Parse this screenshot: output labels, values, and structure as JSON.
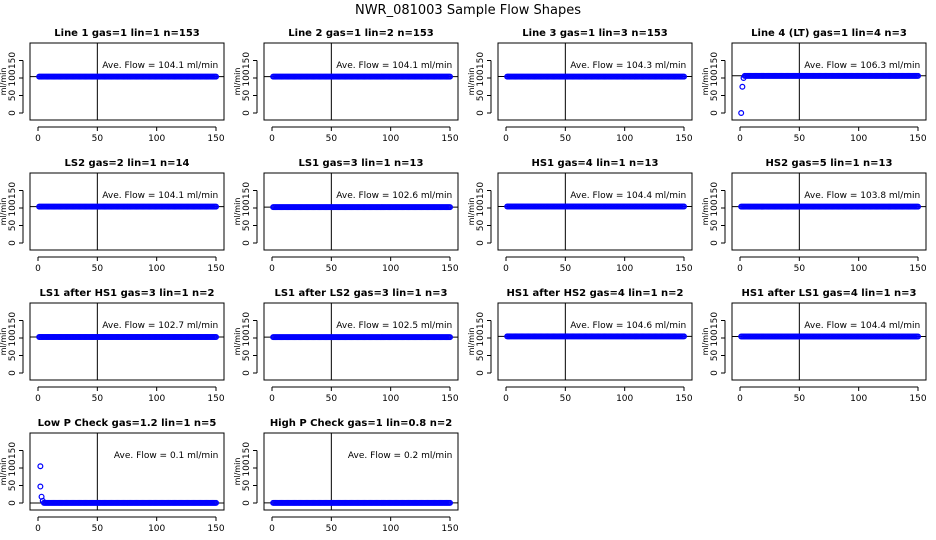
{
  "chart_data": {
    "title": "NWR_081003  Sample Flow Shapes",
    "ylabel": "ml/min",
    "xlim": [
      0,
      150
    ],
    "ylim": [
      -20,
      200
    ],
    "xticks": [
      0,
      50,
      100,
      150
    ],
    "yticks": [
      0,
      50,
      100,
      150
    ],
    "panels": [
      {
        "type": "scatter",
        "title": "Line 1 gas=1 lin=1 n=153",
        "annotation": "Ave. Flow =  104.1  ml/min",
        "hline": 104.1,
        "vline": 50,
        "points": [],
        "steady": {
          "x_start": 1,
          "x_end": 150,
          "value": 104
        }
      },
      {
        "type": "scatter",
        "title": "Line 2 gas=1 lin=2 n=153",
        "annotation": "Ave. Flow =  104.1  ml/min",
        "hline": 104.1,
        "vline": 50,
        "points": [],
        "steady": {
          "x_start": 1,
          "x_end": 150,
          "value": 104
        }
      },
      {
        "type": "scatter",
        "title": "Line 3 gas=1 lin=3 n=153",
        "annotation": "Ave. Flow =  104.3  ml/min",
        "hline": 104.3,
        "vline": 50,
        "points": [],
        "steady": {
          "x_start": 1,
          "x_end": 150,
          "value": 104
        }
      },
      {
        "type": "scatter",
        "title": "Line 4 (LT) gas=1 lin=4 n=3",
        "annotation": "Ave. Flow =  106.3  ml/min",
        "hline": 106.3,
        "vline": 50,
        "points": [
          [
            1,
            0
          ],
          [
            2,
            75
          ],
          [
            3,
            100
          ]
        ],
        "steady": {
          "x_start": 4,
          "x_end": 150,
          "value": 106
        }
      },
      {
        "type": "scatter",
        "title": "LS2 gas=2 lin=1 n=14",
        "annotation": "Ave. Flow =  104.1  ml/min",
        "hline": 104.1,
        "vline": 50,
        "points": [],
        "steady": {
          "x_start": 1,
          "x_end": 150,
          "value": 104
        }
      },
      {
        "type": "scatter",
        "title": "LS1 gas=3 lin=1 n=13",
        "annotation": "Ave. Flow =  102.6  ml/min",
        "hline": 102.6,
        "vline": 50,
        "points": [],
        "steady": {
          "x_start": 1,
          "x_end": 150,
          "value": 102.6
        }
      },
      {
        "type": "scatter",
        "title": "HS1 gas=4 lin=1 n=13",
        "annotation": "Ave. Flow =  104.4  ml/min",
        "hline": 104.4,
        "vline": 50,
        "points": [],
        "steady": {
          "x_start": 1,
          "x_end": 150,
          "value": 104.4
        }
      },
      {
        "type": "scatter",
        "title": "HS2 gas=5 lin=1 n=13",
        "annotation": "Ave. Flow =  103.8  ml/min",
        "hline": 103.8,
        "vline": 50,
        "points": [],
        "steady": {
          "x_start": 1,
          "x_end": 150,
          "value": 103.8
        }
      },
      {
        "type": "scatter",
        "title": "LS1 after HS1 gas=3 lin=1 n=2",
        "annotation": "Ave. Flow =  102.7  ml/min",
        "hline": 102.7,
        "vline": 50,
        "points": [],
        "steady": {
          "x_start": 1,
          "x_end": 150,
          "value": 102.7
        }
      },
      {
        "type": "scatter",
        "title": "LS1 after LS2 gas=3 lin=1 n=3",
        "annotation": "Ave. Flow =  102.5  ml/min",
        "hline": 102.5,
        "vline": 50,
        "points": [],
        "steady": {
          "x_start": 1,
          "x_end": 150,
          "value": 102.5
        }
      },
      {
        "type": "scatter",
        "title": "HS1 after HS2 gas=4 lin=1 n=2",
        "annotation": "Ave. Flow =  104.6  ml/min",
        "hline": 104.6,
        "vline": 50,
        "points": [],
        "steady": {
          "x_start": 1,
          "x_end": 150,
          "value": 104.6
        }
      },
      {
        "type": "scatter",
        "title": "HS1 after LS1 gas=4 lin=1 n=3",
        "annotation": "Ave. Flow =  104.4  ml/min",
        "hline": 104.4,
        "vline": 50,
        "points": [],
        "steady": {
          "x_start": 1,
          "x_end": 150,
          "value": 104.4
        }
      },
      {
        "type": "scatter",
        "title": "Low P Check gas=1.2 lin=1 n=5",
        "annotation": "Ave. Flow =  0.1  ml/min",
        "hline": 0.1,
        "vline": 50,
        "points": [
          [
            2,
            47
          ],
          [
            3,
            18
          ],
          [
            4,
            6
          ]
        ],
        "steady": {
          "x_start": 5,
          "x_end": 150,
          "value": 0.3
        }
      },
      {
        "type": "scatter",
        "title": "High P Check gas=1 lin=0.8 n=2",
        "annotation": "Ave. Flow =  0.2  ml/min",
        "hline": 0.2,
        "vline": 50,
        "points": [],
        "steady": {
          "x_start": 1,
          "x_end": 150,
          "value": 0.5
        }
      }
    ],
    "extra_points": [
      {
        "panel": 12,
        "x": 2,
        "y": 105
      }
    ],
    "colors": {
      "points": "#0000ff",
      "axes": "#000000"
    }
  }
}
